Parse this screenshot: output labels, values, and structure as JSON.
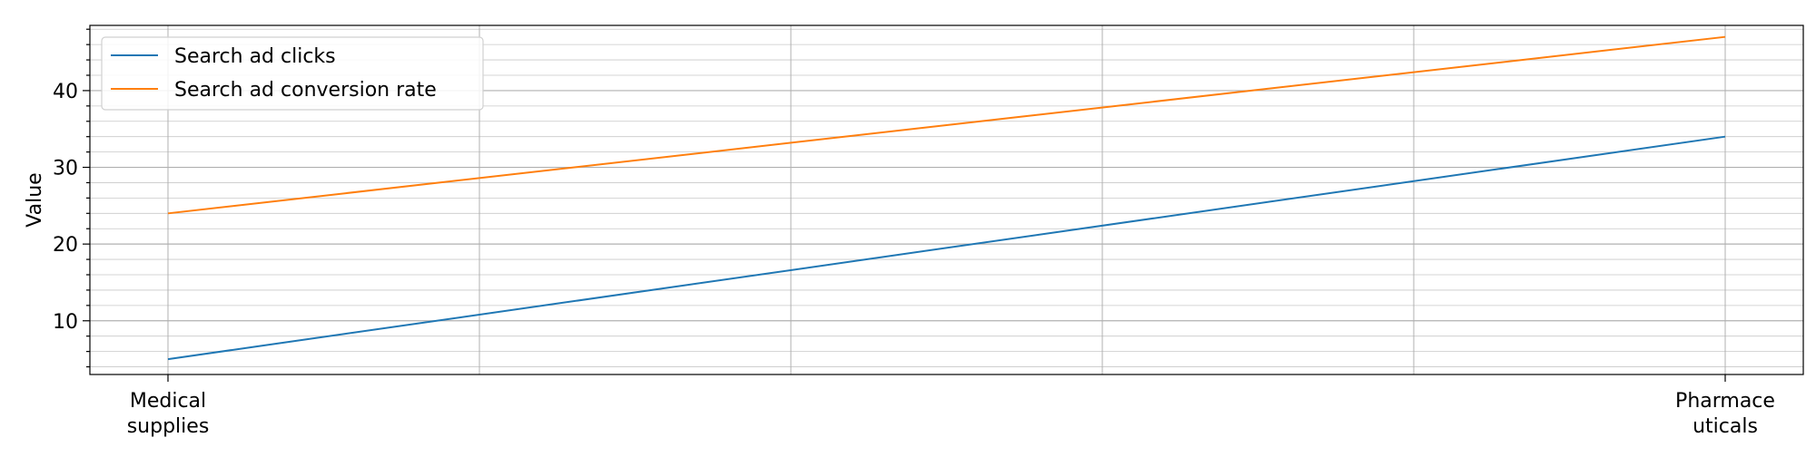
{
  "chart_data": {
    "type": "line",
    "categories": [
      "Medical\nsupplies",
      "Pharmace\nuticals"
    ],
    "series": [
      {
        "name": "Search ad clicks",
        "values": [
          5,
          34
        ],
        "color": "#1f77b4"
      },
      {
        "name": "Search ad conversion rate",
        "values": [
          24,
          47
        ],
        "color": "#ff7f0e"
      }
    ],
    "title": "",
    "xlabel": "",
    "ylabel": "Value",
    "yticks": [
      10,
      20,
      30,
      40
    ],
    "ylim": [
      3,
      48.5
    ],
    "grid": true,
    "minor_grid_y": true,
    "legend": "top-left"
  }
}
